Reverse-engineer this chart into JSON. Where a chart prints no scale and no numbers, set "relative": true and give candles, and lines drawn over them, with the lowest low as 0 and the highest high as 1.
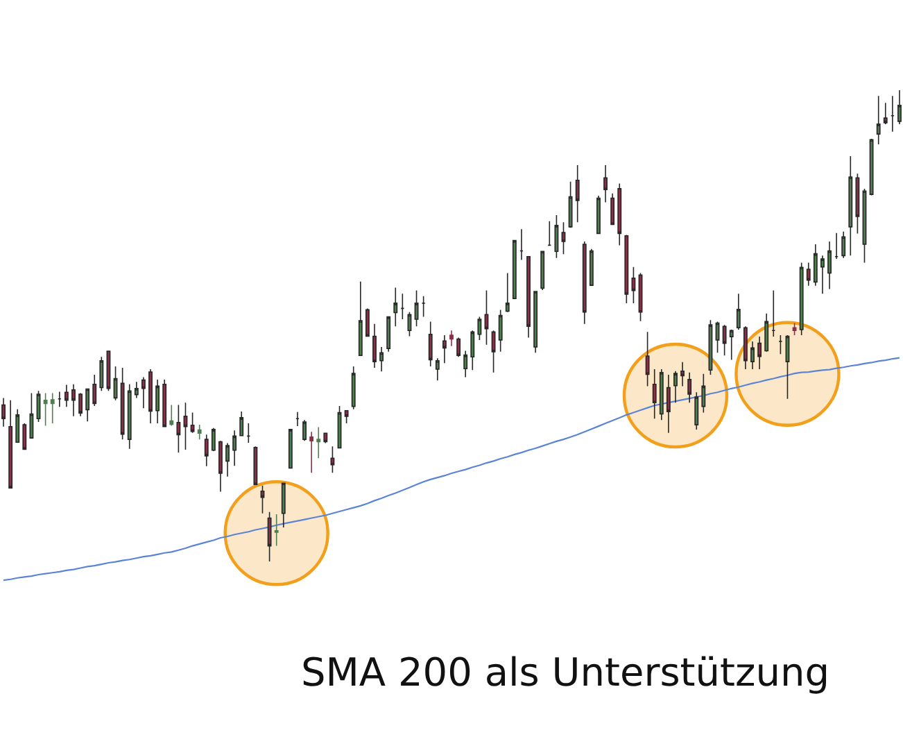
{
  "chart_data": {
    "type": "candlestick",
    "relative": true,
    "categories": [
      null,
      null,
      null,
      null,
      null,
      null,
      null,
      null,
      null,
      null,
      null,
      null,
      null,
      null,
      null,
      null,
      null,
      null,
      null,
      null,
      null,
      null,
      null,
      null,
      null,
      null,
      null,
      null,
      null,
      null,
      null,
      null,
      null,
      null,
      null,
      null,
      null,
      null,
      null,
      null,
      null,
      null,
      null,
      null,
      null,
      null,
      null,
      null,
      null,
      null,
      null,
      null,
      null,
      null,
      null,
      null,
      null,
      null,
      null,
      null,
      null,
      null,
      null,
      null,
      null,
      null,
      null,
      null,
      null,
      null,
      null,
      null,
      null,
      null,
      null,
      null,
      null,
      null,
      null,
      null,
      null,
      null,
      null,
      null,
      null,
      null,
      null,
      null,
      null,
      null,
      null,
      null,
      null,
      null,
      null,
      null,
      null,
      null,
      null,
      null,
      null,
      null,
      null,
      null,
      null,
      null,
      null,
      null,
      null,
      null,
      null,
      null,
      null,
      null,
      null,
      null,
      null,
      null,
      null,
      null,
      null,
      null,
      null,
      null,
      null,
      null,
      null,
      null,
      null
    ],
    "ohlc": [
      [
        0.332,
        0.347,
        0.286,
        0.303
      ],
      [
        0.286,
        0.342,
        0.156,
        0.156
      ],
      [
        0.253,
        0.323,
        0.253,
        0.311
      ],
      [
        0.29,
        0.293,
        0.238,
        0.238
      ],
      [
        0.262,
        0.357,
        0.262,
        0.313
      ],
      [
        0.303,
        0.362,
        0.296,
        0.355
      ],
      [
        0.335,
        0.357,
        0.288,
        0.342
      ],
      [
        0.335,
        0.357,
        0.293,
        0.343
      ],
      [
        0.345,
        0.36,
        0.328,
        0.345
      ],
      [
        0.359,
        0.375,
        0.328,
        0.342
      ],
      [
        0.364,
        0.376,
        0.308,
        0.342
      ],
      [
        0.355,
        0.357,
        0.308,
        0.315
      ],
      [
        0.322,
        0.367,
        0.297,
        0.366
      ],
      [
        0.376,
        0.396,
        0.33,
        0.335
      ],
      [
        0.369,
        0.434,
        0.362,
        0.426
      ],
      [
        0.446,
        0.446,
        0.362,
        0.367
      ],
      [
        0.347,
        0.414,
        0.342,
        0.388
      ],
      [
        0.378,
        0.411,
        0.259,
        0.27
      ],
      [
        0.259,
        0.376,
        0.239,
        0.362
      ],
      [
        0.354,
        0.381,
        0.347,
        0.367
      ],
      [
        0.385,
        0.391,
        0.325,
        0.367
      ],
      [
        0.402,
        0.408,
        0.293,
        0.319
      ],
      [
        0.32,
        0.386,
        0.293,
        0.372
      ],
      [
        0.376,
        0.386,
        0.286,
        0.286
      ],
      [
        0.291,
        0.332,
        0.288,
        0.298
      ],
      [
        0.295,
        0.332,
        0.231,
        0.269
      ],
      [
        0.308,
        0.337,
        0.237,
        0.286
      ],
      [
        0.289,
        0.316,
        0.273,
        0.276
      ],
      [
        0.272,
        0.29,
        0.259,
        0.279
      ],
      [
        0.259,
        0.269,
        0.202,
        0.224
      ],
      [
        0.236,
        0.283,
        0.234,
        0.28
      ],
      [
        0.254,
        0.256,
        0.148,
        0.187
      ],
      [
        0.213,
        0.251,
        0.18,
        0.246
      ],
      [
        0.236,
        0.278,
        0.203,
        0.266
      ],
      [
        0.267,
        0.318,
        0.266,
        0.305
      ],
      [
        0.266,
        0.293,
        0.252,
        0.266
      ],
      [
        0.242,
        0.244,
        0.163,
        0.163
      ],
      [
        0.149,
        0.161,
        0.102,
        0.136
      ],
      [
        0.092,
        0.105,
        0,
        0.033
      ],
      [
        0.062,
        0.1,
        0.033,
        0.065
      ],
      [
        0.102,
        0.167,
        0.072,
        0.166
      ],
      [
        0.198,
        0.281,
        0.198,
        0.28
      ],
      [
        0.303,
        0.317,
        0.287,
        0.303
      ],
      [
        0.259,
        0.3,
        0.256,
        0.296
      ],
      [
        0.264,
        0.275,
        0.188,
        0.256
      ],
      [
        0.254,
        0.285,
        0.219,
        0.259
      ],
      [
        0.272,
        0.273,
        0.251,
        0.254
      ],
      [
        0.219,
        0.244,
        0.188,
        0.205
      ],
      [
        0.241,
        0.33,
        0.241,
        0.316
      ],
      [
        0.32,
        0.32,
        0.293,
        0.308
      ],
      [
        0.329,
        0.414,
        0.323,
        0.399
      ],
      [
        0.437,
        0.594,
        0.437,
        0.511
      ],
      [
        0.534,
        0.537,
        0.478,
        0.478
      ],
      [
        0.478,
        0.504,
        0.411,
        0.424
      ],
      [
        0.426,
        0.455,
        0.403,
        0.443
      ],
      [
        0.452,
        0.519,
        0.445,
        0.519
      ],
      [
        0.528,
        0.581,
        0.499,
        0.548
      ],
      [
        0.537,
        0.568,
        0.514,
        0.537
      ],
      [
        0.49,
        0.529,
        0.478,
        0.524
      ],
      [
        0.514,
        0.575,
        0.499,
        0.548
      ],
      [
        0.548,
        0.563,
        0.519,
        0.548
      ],
      [
        0.482,
        0.509,
        0.414,
        0.428
      ],
      [
        0.408,
        0.431,
        0.384,
        0.426
      ],
      [
        0.468,
        0.48,
        0.421,
        0.453
      ],
      [
        0.48,
        0.49,
        0.457,
        0.472
      ],
      [
        0.472,
        0.475,
        0.434,
        0.437
      ],
      [
        0.409,
        0.447,
        0.391,
        0.438
      ],
      [
        0.434,
        0.49,
        0.406,
        0.487
      ],
      [
        0.482,
        0.519,
        0.47,
        0.514
      ],
      [
        0.524,
        0.575,
        0.46,
        0.494
      ],
      [
        0.487,
        0.49,
        0.401,
        0.445
      ],
      [
        0.47,
        0.534,
        0.445,
        0.522
      ],
      [
        0.531,
        0.612,
        0.529,
        0.548
      ],
      [
        0.558,
        0.681,
        0.558,
        0.681
      ],
      [
        0.659,
        0.705,
        0.64,
        0.659
      ],
      [
        0.647,
        0.647,
        0.475,
        0.499
      ],
      [
        0.455,
        0.573,
        0.443,
        0.573
      ],
      [
        0.58,
        0.658,
        0.576,
        0.658
      ],
      [
        0.671,
        0.722,
        0.671,
        0.671
      ],
      [
        0.658,
        0.735,
        0.644,
        0.713
      ],
      [
        0.698,
        0.72,
        0.652,
        0.679
      ],
      [
        0.71,
        0.806,
        0.708,
        0.774
      ],
      [
        0.809,
        0.841,
        0.72,
        0.766
      ],
      [
        0.673,
        0.679,
        0.504,
        0.529
      ],
      [
        0.586,
        0.663,
        0.586,
        0.659
      ],
      [
        0.696,
        0.776,
        0.696,
        0.771
      ],
      [
        0.814,
        0.841,
        0.762,
        0.789
      ],
      [
        0.771,
        0.781,
        0.715,
        0.715
      ],
      [
        0.791,
        0.802,
        0.671,
        0.696
      ],
      [
        0.691,
        0.693,
        0.548,
        0.567
      ],
      [
        0.601,
        0.625,
        0.548,
        0.575
      ],
      [
        0.608,
        0.612,
        0.51,
        0.529
      ],
      [
        0.436,
        0.487,
        0.372,
        0.397
      ],
      [
        0.376,
        0.408,
        0.303,
        0.337
      ],
      [
        0.313,
        0.408,
        0.3,
        0.401
      ],
      [
        0.369,
        0.396,
        0.273,
        0.318
      ],
      [
        0.373,
        0.404,
        0.337,
        0.399
      ],
      [
        0.404,
        0.423,
        0.372,
        0.394
      ],
      [
        0.386,
        0.401,
        0.337,
        0.355
      ],
      [
        0.29,
        0.359,
        0.28,
        0.349
      ],
      [
        0.329,
        0.398,
        0.316,
        0.372
      ],
      [
        0.406,
        0.512,
        0.396,
        0.502
      ],
      [
        0.47,
        0.509,
        0.443,
        0.506
      ],
      [
        0.499,
        0.502,
        0.437,
        0.463
      ],
      [
        0.477,
        0.492,
        0.428,
        0.49
      ],
      [
        0.496,
        0.568,
        0.492,
        0.535
      ],
      [
        0.496,
        0.499,
        0.408,
        0.426
      ],
      [
        0.424,
        0.467,
        0.408,
        0.453
      ],
      [
        0.463,
        0.477,
        0.408,
        0.435
      ],
      [
        0.447,
        0.526,
        0.445,
        0.509
      ],
      [
        0.49,
        0.575,
        0.477,
        0.49
      ],
      [
        0.467,
        0.48,
        0.44,
        0.467
      ],
      [
        0.424,
        0.48,
        0.345,
        0.478
      ],
      [
        0.496,
        0.506,
        0.48,
        0.49
      ],
      [
        0.492,
        0.634,
        0.48,
        0.624
      ],
      [
        0.62,
        0.634,
        0.585,
        0.597
      ],
      [
        0.593,
        0.673,
        0.585,
        0.653
      ],
      [
        0.625,
        0.649,
        0.568,
        0.642
      ],
      [
        0.612,
        0.679,
        0.578,
        0.659
      ],
      [
        0.647,
        0.697,
        0.642,
        0.647
      ],
      [
        0.649,
        0.7,
        0.644,
        0.689
      ],
      [
        0.71,
        0.86,
        0.649,
        0.816
      ],
      [
        0.814,
        0.823,
        0.696,
        0.732
      ],
      [
        0.673,
        0.791,
        0.634,
        0.786
      ],
      [
        0.779,
        0.897,
        0.777,
        0.895
      ],
      [
        0.907,
        0.988,
        0.885,
        0.928
      ],
      [
        0.941,
        0.973,
        0.928,
        0.931
      ],
      [
        0.946,
        0.988,
        0.912,
        0.946
      ],
      [
        0.934,
        1,
        0.928,
        0.968
      ]
    ],
    "colors": [
      "#8b3048",
      "#8b3048",
      "#4f7f4f",
      "#8b3048",
      "#4f7f4f",
      "#4f7f4f",
      "#4f7f4f",
      "#4f7f4f",
      "#262626",
      "#8b3048",
      "#8b3048",
      "#8b3048",
      "#4f7f4f",
      "#8b3048",
      "#4f7f4f",
      "#8b3048",
      "#4f7f4f",
      "#8b3048",
      "#4f7f4f",
      "#4f7f4f",
      "#8b3048",
      "#8b3048",
      "#4f7f4f",
      "#8b3048",
      "#4f7f4f",
      "#8b3048",
      "#8b3048",
      "#8b3048",
      "#4f7f4f",
      "#8b3048",
      "#4f7f4f",
      "#8b3048",
      "#4f7f4f",
      "#4f7f4f",
      "#4f7f4f",
      "#262626",
      "#8b3048",
      "#8b3048",
      "#8b3048",
      "#4f7f4f",
      "#4f7f4f",
      "#4f7f4f",
      "#262626",
      "#4f7f4f",
      "#8b3048",
      "#4f7f4f",
      "#8b3048",
      "#8b3048",
      "#4f7f4f",
      "#8b3048",
      "#4f7f4f",
      "#4f7f4f",
      "#8b3048",
      "#8b3048",
      "#4f7f4f",
      "#4f7f4f",
      "#4f7f4f",
      "#262626",
      "#4f7f4f",
      "#4f7f4f",
      "#262626",
      "#8b3048",
      "#4f7f4f",
      "#8b3048",
      "#8b3048",
      "#8b3048",
      "#4f7f4f",
      "#4f7f4f",
      "#4f7f4f",
      "#8b3048",
      "#8b3048",
      "#4f7f4f",
      "#4f7f4f",
      "#4f7f4f",
      "#262626",
      "#8b3048",
      "#4f7f4f",
      "#4f7f4f",
      "#262626",
      "#4f7f4f",
      "#8b3048",
      "#4f7f4f",
      "#8b3048",
      "#8b3048",
      "#4f7f4f",
      "#4f7f4f",
      "#8b3048",
      "#8b3048",
      "#8b3048",
      "#8b3048",
      "#8b3048",
      "#8b3048",
      "#8b3048",
      "#8b3048",
      "#4f7f4f",
      "#8b3048",
      "#4f7f4f",
      "#8b3048",
      "#8b3048",
      "#4f7f4f",
      "#4f7f4f",
      "#4f7f4f",
      "#4f7f4f",
      "#8b3048",
      "#4f7f4f",
      "#4f7f4f",
      "#8b3048",
      "#4f7f4f",
      "#8b3048",
      "#4f7f4f",
      "#262626",
      "#262626",
      "#4f7f4f",
      "#8b3048",
      "#4f7f4f",
      "#8b3048",
      "#4f7f4f",
      "#4f7f4f",
      "#4f7f4f",
      "#262626",
      "#4f7f4f",
      "#4f7f4f",
      "#8b3048",
      "#4f7f4f",
      "#4f7f4f",
      "#4f7f4f",
      "#8b3048",
      "#262626",
      "#4f7f4f"
    ],
    "series": [
      {
        "type": "scatter",
        "color": "#f29f1b",
        "marker": "circle",
        "values": [
          null,
          null,
          null,
          null,
          null,
          null,
          null,
          null,
          null,
          null,
          null,
          null,
          null,
          null,
          null,
          null,
          null,
          null,
          null,
          null,
          null,
          null,
          null,
          null,
          null,
          null,
          null,
          null,
          null,
          null,
          null,
          null,
          null,
          null,
          null,
          null,
          null,
          null,
          null,
          0.06,
          null,
          null,
          null,
          null,
          null,
          null,
          null,
          null,
          null,
          null,
          null,
          null,
          null,
          null,
          null,
          null,
          null,
          null,
          null,
          null,
          null,
          null,
          null,
          null,
          null,
          null,
          null,
          null,
          null,
          null,
          null,
          null,
          null,
          null,
          null,
          null,
          null,
          null,
          null,
          null,
          null,
          null,
          null,
          null,
          null,
          null,
          null,
          null,
          null,
          null,
          null,
          null,
          null,
          null,
          null,
          null,
          0.352,
          null,
          null,
          null,
          null,
          null,
          null,
          null,
          null,
          null,
          null,
          null,
          null,
          null,
          null,
          null,
          0.398,
          null,
          null,
          null,
          null,
          null,
          null,
          null,
          null,
          null,
          null,
          null,
          null,
          null,
          null,
          null,
          null
        ]
      },
      {
        "type": "line",
        "color": "#5b84d6",
        "values": [
          -0.04,
          -0.038,
          -0.035,
          -0.033,
          -0.031,
          -0.028,
          -0.026,
          -0.024,
          -0.022,
          -0.019,
          -0.017,
          -0.014,
          -0.011,
          -0.009,
          -0.006,
          -0.003,
          -0.001,
          0.002,
          0.004,
          0.007,
          0.01,
          0.012,
          0.015,
          0.018,
          0.02,
          0.024,
          0.028,
          0.033,
          0.037,
          0.041,
          0.045,
          0.05,
          0.053,
          0.057,
          0.06,
          0.063,
          0.067,
          0.07,
          0.073,
          0.077,
          0.08,
          0.083,
          0.086,
          0.089,
          0.092,
          0.095,
          0.098,
          0.102,
          0.106,
          0.11,
          0.114,
          0.118,
          0.123,
          0.129,
          0.134,
          0.14,
          0.145,
          0.151,
          0.157,
          0.163,
          0.169,
          0.174,
          0.178,
          0.182,
          0.187,
          0.191,
          0.195,
          0.2,
          0.204,
          0.209,
          0.213,
          0.218,
          0.222,
          0.227,
          0.231,
          0.236,
          0.24,
          0.245,
          0.25,
          0.255,
          0.259,
          0.264,
          0.269,
          0.275,
          0.281,
          0.287,
          0.293,
          0.299,
          0.305,
          0.311,
          0.316,
          0.321,
          0.326,
          0.331,
          0.334,
          0.337,
          0.34,
          0.343,
          0.346,
          0.349,
          0.352,
          0.356,
          0.359,
          0.363,
          0.367,
          0.37,
          0.374,
          0.378,
          0.381,
          0.385,
          0.388,
          0.392,
          0.395,
          0.399,
          0.401,
          0.402,
          0.404,
          0.406,
          0.407,
          0.41,
          0.412,
          0.415,
          0.417,
          0.42,
          0.422,
          0.425,
          0.427,
          0.43,
          0.432
        ]
      }
    ],
    "annotations": [
      "SMA 200 als Unterstützung"
    ]
  }
}
